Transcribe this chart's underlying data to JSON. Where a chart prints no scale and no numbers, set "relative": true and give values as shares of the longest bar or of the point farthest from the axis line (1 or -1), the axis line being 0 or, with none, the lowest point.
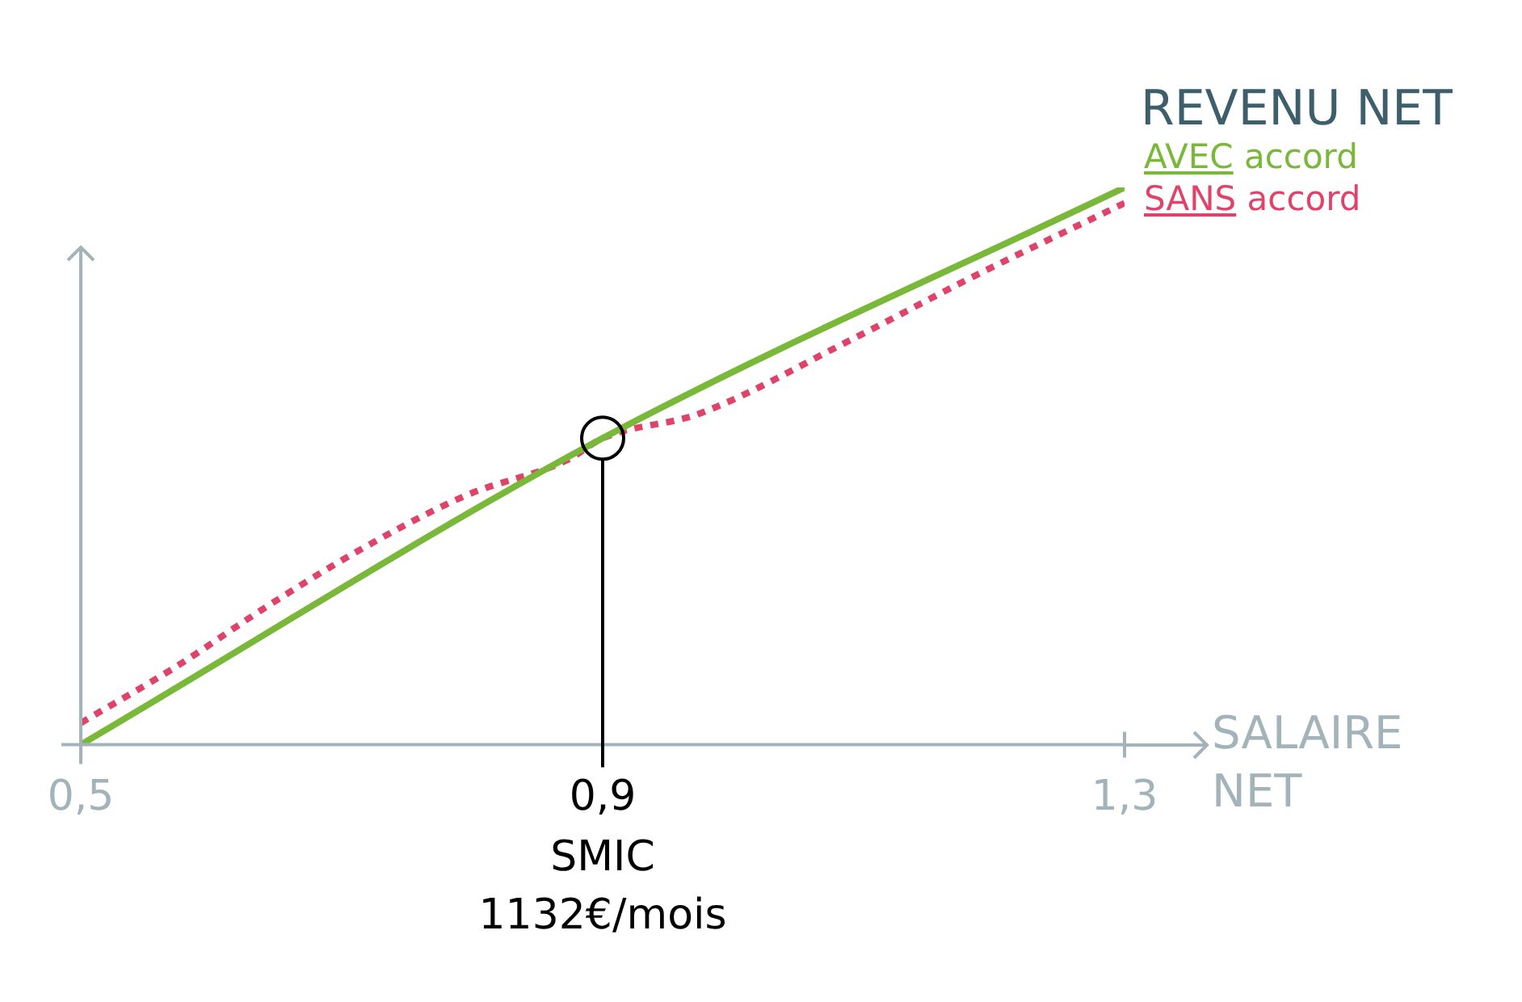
{
  "chart_data": {
    "type": "line",
    "title": "REVENU NET",
    "xlabel": "SALAIRE NET",
    "relative": true,
    "xlim": [
      0.5,
      1.3
    ],
    "xticks": [
      {
        "value": 0.5,
        "label": "0,5"
      },
      {
        "value": 0.9,
        "label": "0,9"
      },
      {
        "value": 1.3,
        "label": "1,3"
      }
    ],
    "series": [
      {
        "name": "AVEC accord",
        "color": "#7ab83a",
        "line_style": "solid",
        "x": [
          0.5,
          0.9,
          1.3
        ],
        "values": [
          0,
          0.55,
          1
        ]
      },
      {
        "name": "SANS accord",
        "color": "#e0436a",
        "line_style": "dotted",
        "x": [
          0.5,
          0.573,
          0.644,
          0.715,
          0.795,
          0.873,
          0.9,
          0.974,
          1.089,
          1.184,
          1.3
        ],
        "values": [
          0.039,
          0.14,
          0.25,
          0.351,
          0.447,
          0.511,
          0.55,
          0.594,
          0.725,
          0.84,
          0.972
        ]
      }
    ],
    "ref_lines": [
      {
        "axis": "x",
        "value": 0.9,
        "color": "#000000"
      }
    ],
    "annotations": [
      "SMIC",
      "1132€/mois"
    ],
    "grid": false,
    "legend": "top right",
    "marker": "none"
  }
}
